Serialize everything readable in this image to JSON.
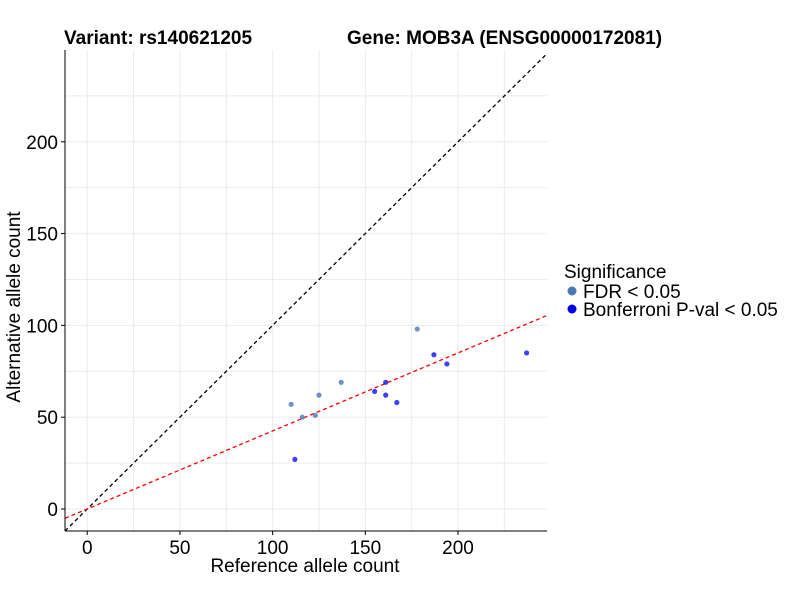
{
  "titles": {
    "left": "Variant: rs140621205",
    "right": "Gene: MOB3A (ENSG00000172081)"
  },
  "chart_data": {
    "type": "scatter",
    "xlabel": "Reference allele count",
    "ylabel": "Alternative allele count",
    "xlim": [
      -12,
      248
    ],
    "ylim": [
      -12,
      250
    ],
    "xticks": [
      0,
      50,
      100,
      150,
      200
    ],
    "yticks": [
      0,
      50,
      100,
      150,
      200
    ],
    "xtick_labels": [
      "0",
      "50",
      "100",
      "150",
      "200"
    ],
    "ytick_labels": [
      "0",
      "50",
      "100",
      "150",
      "200"
    ],
    "grid": true,
    "legend_placement": "right",
    "legend_title": "Significance",
    "series": [
      {
        "name": "FDR < 0.05",
        "color": "#4a78b5",
        "points": [
          {
            "x": 110,
            "y": 57
          },
          {
            "x": 116,
            "y": 50
          },
          {
            "x": 123,
            "y": 51
          },
          {
            "x": 125,
            "y": 62
          },
          {
            "x": 137,
            "y": 69
          },
          {
            "x": 178,
            "y": 98
          }
        ]
      },
      {
        "name": "Bonferroni P-val < 0.05",
        "color": "#0000ee",
        "points": [
          {
            "x": 112,
            "y": 27
          },
          {
            "x": 155,
            "y": 64
          },
          {
            "x": 161,
            "y": 62
          },
          {
            "x": 161,
            "y": 69
          },
          {
            "x": 167,
            "y": 58
          },
          {
            "x": 187,
            "y": 84
          },
          {
            "x": 194,
            "y": 79
          },
          {
            "x": 237,
            "y": 85
          }
        ]
      }
    ],
    "reference_lines": [
      {
        "color": "#000000",
        "dash": true,
        "slope": 1,
        "intercept": 0
      },
      {
        "color": "#ff0000",
        "dash": true,
        "slope": 0.425,
        "intercept": 0
      }
    ]
  }
}
